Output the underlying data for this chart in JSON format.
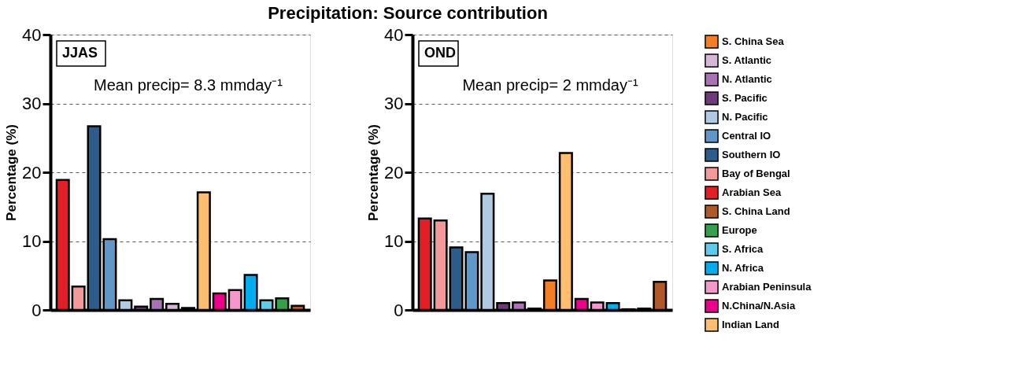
{
  "chart_data": [
    {
      "type": "bar",
      "title": "Precipitation: Source contribution",
      "ylabel": "Percentage (%)",
      "categories": [
        null,
        null,
        null,
        null,
        null,
        null,
        null,
        null,
        null,
        null,
        null,
        null,
        null,
        null,
        null,
        null
      ],
      "series": [
        {
          "name": "Arabian Sea",
          "color": "#e31e24",
          "values": [
            18.9,
            null,
            null,
            null,
            null,
            null,
            null,
            null,
            null,
            null,
            null,
            null,
            null,
            null,
            null,
            null
          ]
        },
        {
          "name": "Bay of Bengal",
          "color": "#f4999a",
          "values": [
            null,
            3.4,
            null,
            null,
            null,
            null,
            null,
            null,
            null,
            null,
            null,
            null,
            null,
            null,
            null,
            null
          ]
        },
        {
          "name": "Southern IO",
          "color": "#2c5d8a",
          "values": [
            null,
            null,
            26.7,
            null,
            null,
            null,
            null,
            null,
            null,
            null,
            null,
            null,
            null,
            null,
            null,
            null
          ]
        },
        {
          "name": "Central IO",
          "color": "#5f97c8",
          "values": [
            null,
            null,
            null,
            10.3,
            null,
            null,
            null,
            null,
            null,
            null,
            null,
            null,
            null,
            null,
            null,
            null
          ]
        },
        {
          "name": "N. Pacific",
          "color": "#afcbe3",
          "values": [
            null,
            null,
            null,
            null,
            1.4,
            null,
            null,
            null,
            null,
            null,
            null,
            null,
            null,
            null,
            null,
            null
          ]
        },
        {
          "name": "S. Pacific",
          "color": "#6e3a79",
          "values": [
            null,
            null,
            null,
            null,
            null,
            0.5,
            null,
            null,
            null,
            null,
            null,
            null,
            null,
            null,
            null,
            null
          ]
        },
        {
          "name": "N. Atlantic",
          "color": "#a972b4",
          "values": [
            null,
            null,
            null,
            null,
            null,
            null,
            1.6,
            null,
            null,
            null,
            null,
            null,
            null,
            null,
            null,
            null
          ]
        },
        {
          "name": "S. Atlantic",
          "color": "#d7b7d9",
          "values": [
            null,
            null,
            null,
            null,
            null,
            null,
            null,
            0.9,
            null,
            null,
            null,
            null,
            null,
            null,
            null,
            null
          ]
        },
        {
          "name": "S. China Sea",
          "color": "#f37f22",
          "values": [
            null,
            null,
            null,
            null,
            null,
            null,
            null,
            null,
            0.3,
            null,
            null,
            null,
            null,
            null,
            null,
            null
          ]
        },
        {
          "name": "Indian Land",
          "color": "#fdbf6f",
          "values": [
            null,
            null,
            null,
            null,
            null,
            null,
            null,
            null,
            null,
            17.1,
            null,
            null,
            null,
            null,
            null,
            null
          ]
        },
        {
          "name": "N.China/N.Asia",
          "color": "#ec008c",
          "values": [
            null,
            null,
            null,
            null,
            null,
            null,
            null,
            null,
            null,
            null,
            2.4,
            null,
            null,
            null,
            null,
            null
          ]
        },
        {
          "name": "Arabian Peninsula",
          "color": "#f498cb",
          "values": [
            null,
            null,
            null,
            null,
            null,
            null,
            null,
            null,
            null,
            null,
            null,
            2.9,
            null,
            null,
            null,
            null
          ]
        },
        {
          "name": "N. Africa",
          "color": "#00aeef",
          "values": [
            null,
            null,
            null,
            null,
            null,
            null,
            null,
            null,
            null,
            null,
            null,
            null,
            5.1,
            null,
            null,
            null
          ]
        },
        {
          "name": "S. Africa",
          "color": "#5ecbeb",
          "values": [
            null,
            null,
            null,
            null,
            null,
            null,
            null,
            null,
            null,
            null,
            null,
            null,
            null,
            1.4,
            null,
            null
          ]
        },
        {
          "name": "Europe",
          "color": "#33a04a",
          "values": [
            null,
            null,
            null,
            null,
            null,
            null,
            null,
            null,
            null,
            null,
            null,
            null,
            null,
            null,
            1.7,
            null
          ]
        },
        {
          "name": "S. China Land",
          "color": "#b15928",
          "values": [
            null,
            null,
            null,
            null,
            null,
            null,
            null,
            null,
            null,
            null,
            null,
            null,
            null,
            null,
            null,
            0.6
          ]
        }
      ],
      "ylim": [
        0,
        40
      ],
      "yticks": [
        0,
        10,
        20,
        30,
        40
      ],
      "grid": "y",
      "tick_labels": "y",
      "legend": "right",
      "annotations": [
        "JJAS",
        "Mean precip= 8.3 mmday⁻¹"
      ]
    },
    {
      "type": "bar",
      "ylabel": "Percentage (%)",
      "categories": [
        null,
        null,
        null,
        null,
        null,
        null,
        null,
        null,
        null,
        null,
        null,
        null,
        null,
        null,
        null,
        null
      ],
      "series": [
        {
          "name": "Arabian Sea",
          "color": "#e31e24",
          "values": [
            13.3,
            null,
            null,
            null,
            null,
            null,
            null,
            null,
            null,
            null,
            null,
            null,
            null,
            null,
            null,
            null
          ]
        },
        {
          "name": "Bay of Bengal",
          "color": "#f4999a",
          "values": [
            null,
            13.0,
            null,
            null,
            null,
            null,
            null,
            null,
            null,
            null,
            null,
            null,
            null,
            null,
            null,
            null
          ]
        },
        {
          "name": "Southern IO",
          "color": "#2c5d8a",
          "values": [
            null,
            null,
            9.1,
            null,
            null,
            null,
            null,
            null,
            null,
            null,
            null,
            null,
            null,
            null,
            null,
            null
          ]
        },
        {
          "name": "Central IO",
          "color": "#5f97c8",
          "values": [
            null,
            null,
            null,
            8.4,
            null,
            null,
            null,
            null,
            null,
            null,
            null,
            null,
            null,
            null,
            null,
            null
          ]
        },
        {
          "name": "N. Pacific",
          "color": "#afcbe3",
          "values": [
            null,
            null,
            null,
            null,
            16.9,
            null,
            null,
            null,
            null,
            null,
            null,
            null,
            null,
            null,
            null,
            null
          ]
        },
        {
          "name": "S. Pacific",
          "color": "#6e3a79",
          "values": [
            null,
            null,
            null,
            null,
            null,
            1.0,
            null,
            null,
            null,
            null,
            null,
            null,
            null,
            null,
            null,
            null
          ]
        },
        {
          "name": "N. Atlantic",
          "color": "#a972b4",
          "values": [
            null,
            null,
            null,
            null,
            null,
            null,
            1.1,
            null,
            null,
            null,
            null,
            null,
            null,
            null,
            null,
            null
          ]
        },
        {
          "name": "S. Atlantic",
          "color": "#d7b7d9",
          "values": [
            null,
            null,
            null,
            null,
            null,
            null,
            null,
            0.2,
            null,
            null,
            null,
            null,
            null,
            null,
            null,
            null
          ]
        },
        {
          "name": "S. China Sea",
          "color": "#f37f22",
          "values": [
            null,
            null,
            null,
            null,
            null,
            null,
            null,
            null,
            4.3,
            null,
            null,
            null,
            null,
            null,
            null,
            null
          ]
        },
        {
          "name": "Indian Land",
          "color": "#fdbf6f",
          "values": [
            null,
            null,
            null,
            null,
            null,
            null,
            null,
            null,
            null,
            22.8,
            null,
            null,
            null,
            null,
            null,
            null
          ]
        },
        {
          "name": "N.China/N.Asia",
          "color": "#ec008c",
          "values": [
            null,
            null,
            null,
            null,
            null,
            null,
            null,
            null,
            null,
            null,
            1.6,
            null,
            null,
            null,
            null,
            null
          ]
        },
        {
          "name": "Arabian Peninsula",
          "color": "#f498cb",
          "values": [
            null,
            null,
            null,
            null,
            null,
            null,
            null,
            null,
            null,
            null,
            null,
            1.1,
            null,
            null,
            null,
            null
          ]
        },
        {
          "name": "N. Africa",
          "color": "#00aeef",
          "values": [
            null,
            null,
            null,
            null,
            null,
            null,
            null,
            null,
            null,
            null,
            null,
            null,
            1.0,
            null,
            null,
            null
          ]
        },
        {
          "name": "S. Africa",
          "color": "#5ecbeb",
          "values": [
            null,
            null,
            null,
            null,
            null,
            null,
            null,
            null,
            null,
            null,
            null,
            null,
            null,
            0.1,
            null,
            null
          ]
        },
        {
          "name": "Europe",
          "color": "#33a04a",
          "values": [
            null,
            null,
            null,
            null,
            null,
            null,
            null,
            null,
            null,
            null,
            null,
            null,
            null,
            null,
            0.2,
            null
          ]
        },
        {
          "name": "S. China Land",
          "color": "#b15928",
          "values": [
            null,
            null,
            null,
            null,
            null,
            null,
            null,
            null,
            null,
            null,
            null,
            null,
            null,
            null,
            null,
            4.1
          ]
        }
      ],
      "ylim": [
        0,
        40
      ],
      "yticks": [
        0,
        10,
        20,
        30,
        40
      ],
      "grid": "y",
      "tick_labels": "y",
      "legend": "right",
      "annotations": [
        "OND",
        "Mean precip= 2 mmday⁻¹"
      ]
    }
  ]
}
